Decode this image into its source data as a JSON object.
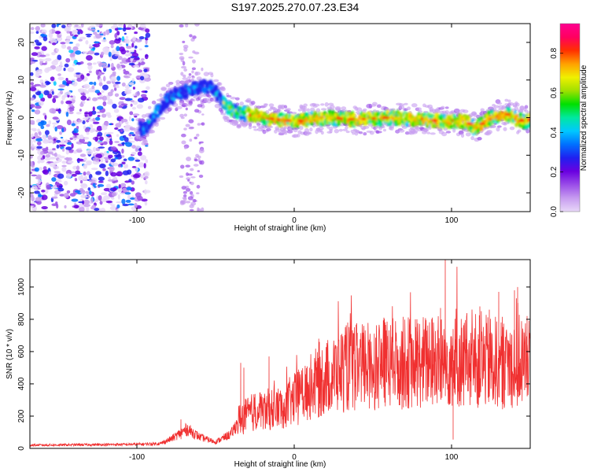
{
  "title": "S197.2025.270.07.23.E34",
  "chart_data": [
    {
      "type": "heatmap",
      "name": "spectrogram",
      "xlabel": "Height of straight line (km)",
      "ylabel": "Frequency (Hz)",
      "xlim": [
        -168,
        150
      ],
      "ylim": [
        -25,
        25
      ],
      "xticks": [
        -100,
        0,
        100
      ],
      "yticks": [
        -20,
        -10,
        0,
        10,
        20
      ],
      "colorbar": {
        "label": "Normalized spectral amplitude",
        "range": [
          0,
          0.95
        ],
        "ticks": [
          0.0,
          0.2,
          0.4,
          0.6,
          0.8
        ],
        "colors": [
          "#e8d8f8",
          "#c79cf0",
          "#9a4de8",
          "#6a00e0",
          "#2020f0",
          "#0070ff",
          "#00c8ff",
          "#00e8a0",
          "#00e000",
          "#a0e000",
          "#f0f000",
          "#ffa000",
          "#ff3000",
          "#ff0060",
          "#ff0090"
        ]
      },
      "ridge": [
        {
          "x": -95,
          "y": -3
        },
        {
          "x": -90,
          "y": 0
        },
        {
          "x": -85,
          "y": 3
        },
        {
          "x": -80,
          "y": 5
        },
        {
          "x": -70,
          "y": 7
        },
        {
          "x": -60,
          "y": 8
        },
        {
          "x": -52,
          "y": 8
        },
        {
          "x": -45,
          "y": 4
        },
        {
          "x": -40,
          "y": 2
        },
        {
          "x": -30,
          "y": 1
        },
        {
          "x": -20,
          "y": 0
        },
        {
          "x": 0,
          "y": -1
        },
        {
          "x": 20,
          "y": 0
        },
        {
          "x": 40,
          "y": -0.5
        },
        {
          "x": 60,
          "y": 0
        },
        {
          "x": 80,
          "y": -0.5
        },
        {
          "x": 100,
          "y": -1
        },
        {
          "x": 110,
          "y": -1
        },
        {
          "x": 115,
          "y": -3
        },
        {
          "x": 125,
          "y": 0
        },
        {
          "x": 135,
          "y": 1
        },
        {
          "x": 145,
          "y": -1
        },
        {
          "x": 150,
          "y": -1
        }
      ]
    },
    {
      "type": "line",
      "name": "snr",
      "xlabel": "Height of straight line (km)",
      "ylabel": "SNR (10 * v/v)",
      "xlim": [
        -168,
        150
      ],
      "ylim": [
        0,
        1170
      ],
      "xticks": [
        -100,
        0,
        100
      ],
      "yticks": [
        0,
        200,
        400,
        600,
        800,
        1000
      ],
      "color": "#f03030",
      "envelope": [
        {
          "x": -168,
          "y": 20
        },
        {
          "x": -100,
          "y": 25
        },
        {
          "x": -85,
          "y": 30
        },
        {
          "x": -78,
          "y": 60
        },
        {
          "x": -68,
          "y": 120
        },
        {
          "x": -60,
          "y": 70
        },
        {
          "x": -50,
          "y": 40
        },
        {
          "x": -40,
          "y": 90
        },
        {
          "x": -35,
          "y": 180
        },
        {
          "x": -25,
          "y": 230
        },
        {
          "x": -10,
          "y": 250
        },
        {
          "x": 0,
          "y": 300
        },
        {
          "x": 10,
          "y": 380
        },
        {
          "x": 20,
          "y": 440
        },
        {
          "x": 30,
          "y": 490
        },
        {
          "x": 50,
          "y": 520
        },
        {
          "x": 70,
          "y": 530
        },
        {
          "x": 90,
          "y": 540
        },
        {
          "x": 110,
          "y": 540
        },
        {
          "x": 130,
          "y": 530
        },
        {
          "x": 150,
          "y": 540
        }
      ],
      "peaks": [
        {
          "x": -72,
          "y": 180
        },
        {
          "x": -34,
          "y": 530
        },
        {
          "x": -32,
          "y": 500
        },
        {
          "x": -16,
          "y": 570
        },
        {
          "x": 16,
          "y": 660
        },
        {
          "x": 34,
          "y": 780
        },
        {
          "x": 57,
          "y": 810
        },
        {
          "x": 78,
          "y": 800
        },
        {
          "x": 93,
          "y": 870
        },
        {
          "x": 96,
          "y": 1170
        },
        {
          "x": 101,
          "y": 740
        },
        {
          "x": 118,
          "y": 880
        },
        {
          "x": 124,
          "y": 860
        },
        {
          "x": 130,
          "y": 970
        },
        {
          "x": 140,
          "y": 980
        },
        {
          "x": 142,
          "y": 1000
        },
        {
          "x": 148,
          "y": 820
        }
      ]
    }
  ]
}
